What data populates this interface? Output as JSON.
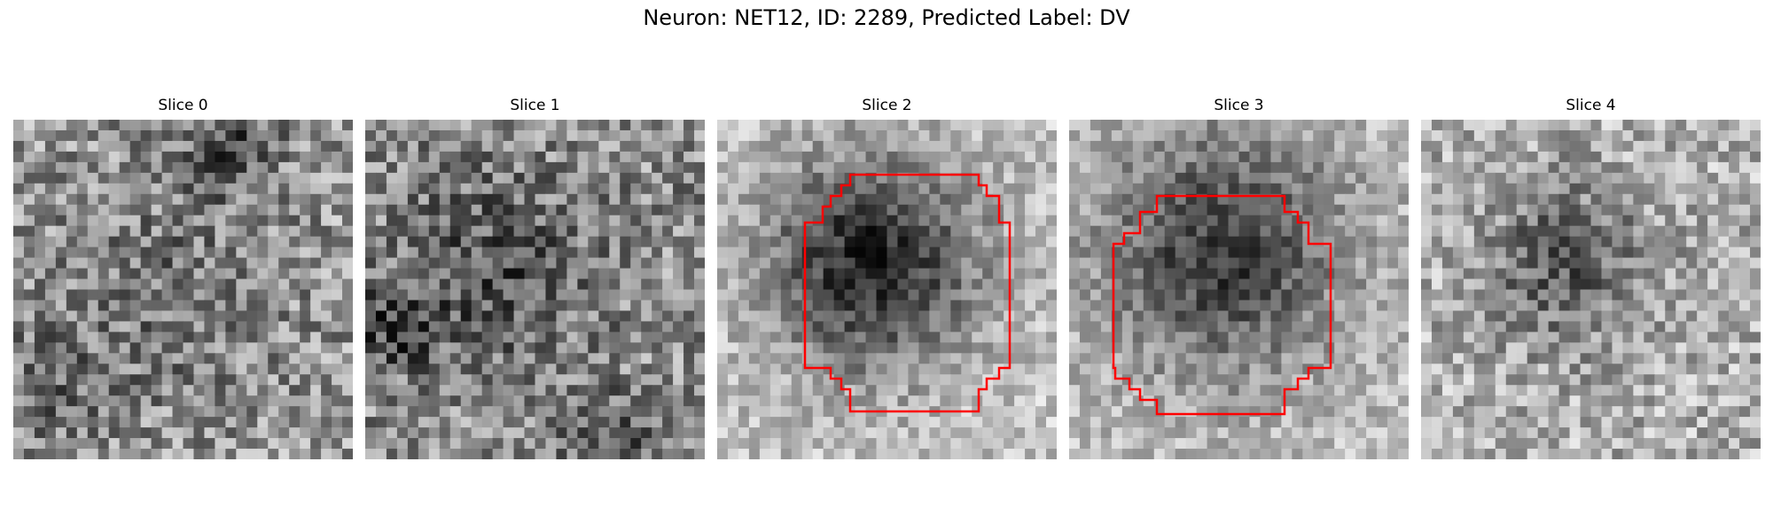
{
  "figure": {
    "title": "Neuron: NET12, ID: 2289, Predicted Label: DV"
  },
  "slices": [
    {
      "title": "Slice 0",
      "has_outline": false,
      "outline_color": "#ff0000"
    },
    {
      "title": "Slice 1",
      "has_outline": false,
      "outline_color": "#ff0000"
    },
    {
      "title": "Slice 2",
      "has_outline": true,
      "outline_color": "#ff0000"
    },
    {
      "title": "Slice 3",
      "has_outline": true,
      "outline_color": "#ff0000"
    },
    {
      "title": "Slice 4",
      "has_outline": false,
      "outline_color": "#ff0000"
    }
  ],
  "colors": {
    "background": "#ffffff",
    "colormap": "grayscale",
    "outline": "#ff0000"
  }
}
